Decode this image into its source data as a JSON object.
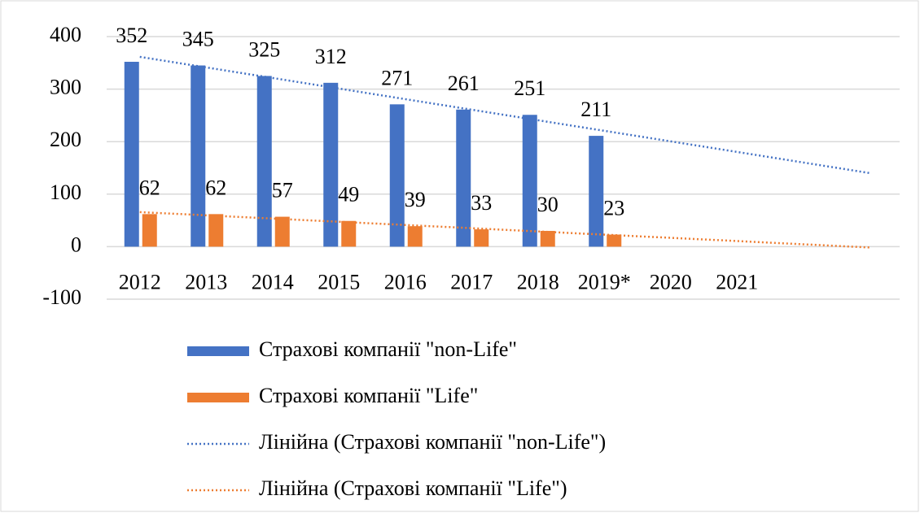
{
  "chart_data": {
    "type": "bar",
    "categories": [
      "2012",
      "2013",
      "2014",
      "2015",
      "2016",
      "2017",
      "2018",
      "2019*",
      "2020",
      "2021",
      null,
      null
    ],
    "series": [
      {
        "name": "Страхові компанії \"non-Life\"",
        "color": "#4472c4",
        "values": [
          352,
          345,
          325,
          312,
          271,
          261,
          251,
          211,
          null,
          null,
          null,
          null
        ]
      },
      {
        "name": "Страхові компанії \"Life\"",
        "color": "#ed7d31",
        "values": [
          62,
          62,
          57,
          49,
          39,
          33,
          30,
          23,
          null,
          null,
          null,
          null
        ]
      }
    ],
    "trendlines": [
      {
        "name": "Лінійна (Страхові компанії \"non-Life\")",
        "color": "#4472c4",
        "values": [
          361.4,
          341.3,
          321.2,
          301.1,
          280.9,
          260.8,
          240.7,
          220.6,
          200.5,
          180.4,
          160.2,
          140.1
        ]
      },
      {
        "name": "Лінійна (Страхові компанії \"Life\")",
        "color": "#ed7d31",
        "values": [
          65.8,
          59.7,
          53.5,
          47.4,
          41.3,
          35.2,
          29.0,
          22.9,
          16.8,
          10.7,
          4.5,
          -1.6
        ]
      }
    ],
    "ylim": [
      -100,
      400
    ],
    "yticks": [
      -100,
      0,
      100,
      200,
      300,
      400
    ],
    "grid": true
  }
}
